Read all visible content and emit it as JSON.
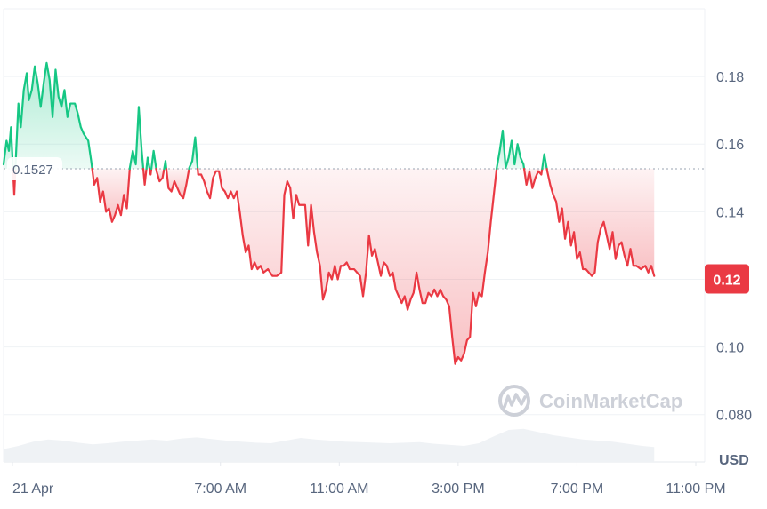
{
  "chart_data": {
    "type": "area",
    "title": "",
    "unit": "USD",
    "reference_value": 0.1527,
    "reference_label": "0.1527",
    "current_value": 0.12,
    "current_label": "0.12",
    "ylim": [
      0.066,
      0.2
    ],
    "y_ticks": [
      {
        "value": 0.18,
        "label": "0.18"
      },
      {
        "value": 0.16,
        "label": "0.16"
      },
      {
        "value": 0.14,
        "label": "0.14"
      },
      {
        "value": 0.12,
        "label": "0.12"
      },
      {
        "value": 0.1,
        "label": "0.10"
      },
      {
        "value": 0.08,
        "label": "0.080"
      }
    ],
    "x_ticks": [
      {
        "hour": 0,
        "label": "21 Apr"
      },
      {
        "hour": 7,
        "label": "7:00 AM"
      },
      {
        "hour": 11,
        "label": "11:00 AM"
      },
      {
        "hour": 15,
        "label": "3:00 PM"
      },
      {
        "hour": 19,
        "label": "7:00 PM"
      },
      {
        "hour": 23,
        "label": "11:00 PM"
      }
    ],
    "x_range_hours": [
      -0.3,
      23.3
    ],
    "grid": true,
    "colors": {
      "up": "#16c784",
      "down": "#ea3943",
      "grid": "#eff2f5",
      "ref_line": "#9aa3b1",
      "volume": "#eff2f5",
      "badge": "#ea3943"
    },
    "points": [
      [
        -0.3,
        0.154
      ],
      [
        -0.2,
        0.161
      ],
      [
        -0.12,
        0.158
      ],
      [
        -0.05,
        0.165
      ],
      [
        0.02,
        0.152
      ],
      [
        0.06,
        0.145
      ],
      [
        0.12,
        0.157
      ],
      [
        0.2,
        0.172
      ],
      [
        0.28,
        0.165
      ],
      [
        0.38,
        0.176
      ],
      [
        0.48,
        0.181
      ],
      [
        0.55,
        0.173
      ],
      [
        0.65,
        0.176
      ],
      [
        0.75,
        0.183
      ],
      [
        0.85,
        0.178
      ],
      [
        0.95,
        0.171
      ],
      [
        1.05,
        0.178
      ],
      [
        1.15,
        0.184
      ],
      [
        1.25,
        0.179
      ],
      [
        1.35,
        0.168
      ],
      [
        1.45,
        0.182
      ],
      [
        1.55,
        0.174
      ],
      [
        1.65,
        0.171
      ],
      [
        1.75,
        0.176
      ],
      [
        1.85,
        0.168
      ],
      [
        1.95,
        0.172
      ],
      [
        2.1,
        0.172
      ],
      [
        2.2,
        0.169
      ],
      [
        2.3,
        0.165
      ],
      [
        2.4,
        0.163
      ],
      [
        2.55,
        0.161
      ],
      [
        2.65,
        0.155
      ],
      [
        2.75,
        0.148
      ],
      [
        2.85,
        0.15
      ],
      [
        2.95,
        0.143
      ],
      [
        3.05,
        0.146
      ],
      [
        3.15,
        0.14
      ],
      [
        3.25,
        0.141
      ],
      [
        3.35,
        0.137
      ],
      [
        3.45,
        0.139
      ],
      [
        3.55,
        0.142
      ],
      [
        3.65,
        0.139
      ],
      [
        3.75,
        0.145
      ],
      [
        3.85,
        0.141
      ],
      [
        3.95,
        0.153
      ],
      [
        4.05,
        0.158
      ],
      [
        4.15,
        0.154
      ],
      [
        4.25,
        0.171
      ],
      [
        4.35,
        0.158
      ],
      [
        4.45,
        0.148
      ],
      [
        4.55,
        0.156
      ],
      [
        4.65,
        0.151
      ],
      [
        4.75,
        0.158
      ],
      [
        4.85,
        0.152
      ],
      [
        4.95,
        0.149
      ],
      [
        5.05,
        0.15
      ],
      [
        5.15,
        0.155
      ],
      [
        5.25,
        0.147
      ],
      [
        5.35,
        0.146
      ],
      [
        5.45,
        0.149
      ],
      [
        5.55,
        0.147
      ],
      [
        5.65,
        0.145
      ],
      [
        5.75,
        0.144
      ],
      [
        5.85,
        0.148
      ],
      [
        5.95,
        0.153
      ],
      [
        6.05,
        0.155
      ],
      [
        6.15,
        0.162
      ],
      [
        6.25,
        0.151
      ],
      [
        6.35,
        0.151
      ],
      [
        6.45,
        0.149
      ],
      [
        6.55,
        0.146
      ],
      [
        6.65,
        0.144
      ],
      [
        6.75,
        0.15
      ],
      [
        6.85,
        0.152
      ],
      [
        6.95,
        0.152
      ],
      [
        7.05,
        0.147
      ],
      [
        7.15,
        0.146
      ],
      [
        7.25,
        0.144
      ],
      [
        7.35,
        0.146
      ],
      [
        7.45,
        0.144
      ],
      [
        7.55,
        0.146
      ],
      [
        7.65,
        0.14
      ],
      [
        7.75,
        0.133
      ],
      [
        7.85,
        0.128
      ],
      [
        7.95,
        0.13
      ],
      [
        8.05,
        0.123
      ],
      [
        8.15,
        0.125
      ],
      [
        8.25,
        0.123
      ],
      [
        8.35,
        0.124
      ],
      [
        8.45,
        0.122
      ],
      [
        8.6,
        0.123
      ],
      [
        8.75,
        0.121
      ],
      [
        8.9,
        0.121
      ],
      [
        9.05,
        0.122
      ],
      [
        9.15,
        0.145
      ],
      [
        9.25,
        0.149
      ],
      [
        9.35,
        0.147
      ],
      [
        9.45,
        0.138
      ],
      [
        9.55,
        0.145
      ],
      [
        9.65,
        0.142
      ],
      [
        9.75,
        0.142
      ],
      [
        9.85,
        0.142
      ],
      [
        9.95,
        0.13
      ],
      [
        10.05,
        0.142
      ],
      [
        10.15,
        0.134
      ],
      [
        10.25,
        0.128
      ],
      [
        10.35,
        0.124
      ],
      [
        10.45,
        0.114
      ],
      [
        10.55,
        0.117
      ],
      [
        10.65,
        0.122
      ],
      [
        10.75,
        0.12
      ],
      [
        10.85,
        0.124
      ],
      [
        10.95,
        0.12
      ],
      [
        11.05,
        0.124
      ],
      [
        11.15,
        0.124
      ],
      [
        11.25,
        0.125
      ],
      [
        11.35,
        0.123
      ],
      [
        11.5,
        0.123
      ],
      [
        11.6,
        0.122
      ],
      [
        11.7,
        0.121
      ],
      [
        11.8,
        0.115
      ],
      [
        11.9,
        0.122
      ],
      [
        12.0,
        0.133
      ],
      [
        12.1,
        0.127
      ],
      [
        12.2,
        0.129
      ],
      [
        12.3,
        0.125
      ],
      [
        12.4,
        0.121
      ],
      [
        12.5,
        0.125
      ],
      [
        12.6,
        0.124
      ],
      [
        12.7,
        0.121
      ],
      [
        12.8,
        0.122
      ],
      [
        12.9,
        0.117
      ],
      [
        13.0,
        0.115
      ],
      [
        13.1,
        0.113
      ],
      [
        13.2,
        0.115
      ],
      [
        13.3,
        0.111
      ],
      [
        13.4,
        0.114
      ],
      [
        13.5,
        0.116
      ],
      [
        13.6,
        0.122
      ],
      [
        13.7,
        0.117
      ],
      [
        13.8,
        0.113
      ],
      [
        13.9,
        0.113
      ],
      [
        14.0,
        0.116
      ],
      [
        14.1,
        0.115
      ],
      [
        14.2,
        0.117
      ],
      [
        14.3,
        0.115
      ],
      [
        14.4,
        0.117
      ],
      [
        14.5,
        0.115
      ],
      [
        14.6,
        0.114
      ],
      [
        14.7,
        0.112
      ],
      [
        14.8,
        0.103
      ],
      [
        14.9,
        0.095
      ],
      [
        15.0,
        0.097
      ],
      [
        15.1,
        0.096
      ],
      [
        15.2,
        0.098
      ],
      [
        15.3,
        0.102
      ],
      [
        15.4,
        0.103
      ],
      [
        15.5,
        0.116
      ],
      [
        15.6,
        0.112
      ],
      [
        15.7,
        0.116
      ],
      [
        15.8,
        0.115
      ],
      [
        15.9,
        0.122
      ],
      [
        16.0,
        0.128
      ],
      [
        16.1,
        0.137
      ],
      [
        16.2,
        0.145
      ],
      [
        16.3,
        0.153
      ],
      [
        16.4,
        0.158
      ],
      [
        16.5,
        0.164
      ],
      [
        16.6,
        0.153
      ],
      [
        16.7,
        0.156
      ],
      [
        16.8,
        0.161
      ],
      [
        16.9,
        0.154
      ],
      [
        17.0,
        0.16
      ],
      [
        17.1,
        0.156
      ],
      [
        17.2,
        0.154
      ],
      [
        17.3,
        0.148
      ],
      [
        17.4,
        0.152
      ],
      [
        17.5,
        0.147
      ],
      [
        17.6,
        0.15
      ],
      [
        17.7,
        0.152
      ],
      [
        17.8,
        0.151
      ],
      [
        17.9,
        0.157
      ],
      [
        18.0,
        0.152
      ],
      [
        18.1,
        0.148
      ],
      [
        18.2,
        0.145
      ],
      [
        18.3,
        0.143
      ],
      [
        18.4,
        0.137
      ],
      [
        18.5,
        0.141
      ],
      [
        18.6,
        0.132
      ],
      [
        18.7,
        0.137
      ],
      [
        18.8,
        0.13
      ],
      [
        18.9,
        0.134
      ],
      [
        19.0,
        0.126
      ],
      [
        19.1,
        0.128
      ],
      [
        19.2,
        0.123
      ],
      [
        19.3,
        0.123
      ],
      [
        19.4,
        0.122
      ],
      [
        19.5,
        0.121
      ],
      [
        19.6,
        0.122
      ],
      [
        19.7,
        0.131
      ],
      [
        19.8,
        0.135
      ],
      [
        19.9,
        0.137
      ],
      [
        20.0,
        0.133
      ],
      [
        20.1,
        0.129
      ],
      [
        20.2,
        0.134
      ],
      [
        20.3,
        0.126
      ],
      [
        20.4,
        0.13
      ],
      [
        20.5,
        0.131
      ],
      [
        20.6,
        0.127
      ],
      [
        20.7,
        0.124
      ],
      [
        20.8,
        0.129
      ],
      [
        20.9,
        0.124
      ],
      [
        21.0,
        0.124
      ],
      [
        21.15,
        0.123
      ],
      [
        21.3,
        0.124
      ],
      [
        21.4,
        0.122
      ],
      [
        21.5,
        0.124
      ],
      [
        21.6,
        0.121
      ]
    ],
    "volume": [
      [
        -0.3,
        0.24
      ],
      [
        0.2,
        0.3
      ],
      [
        0.7,
        0.38
      ],
      [
        1.2,
        0.42
      ],
      [
        1.7,
        0.4
      ],
      [
        2.2,
        0.36
      ],
      [
        2.7,
        0.33
      ],
      [
        3.2,
        0.35
      ],
      [
        3.7,
        0.38
      ],
      [
        4.2,
        0.4
      ],
      [
        4.7,
        0.42
      ],
      [
        5.2,
        0.4
      ],
      [
        5.7,
        0.44
      ],
      [
        6.2,
        0.46
      ],
      [
        6.7,
        0.43
      ],
      [
        7.2,
        0.4
      ],
      [
        7.7,
        0.38
      ],
      [
        8.2,
        0.36
      ],
      [
        8.7,
        0.35
      ],
      [
        9.2,
        0.4
      ],
      [
        9.7,
        0.45
      ],
      [
        10.2,
        0.42
      ],
      [
        10.7,
        0.4
      ],
      [
        11.2,
        0.38
      ],
      [
        11.7,
        0.37
      ],
      [
        12.2,
        0.36
      ],
      [
        12.7,
        0.35
      ],
      [
        13.2,
        0.36
      ],
      [
        13.7,
        0.37
      ],
      [
        14.2,
        0.34
      ],
      [
        14.7,
        0.32
      ],
      [
        15.2,
        0.3
      ],
      [
        15.7,
        0.35
      ],
      [
        16.2,
        0.48
      ],
      [
        16.7,
        0.6
      ],
      [
        17.2,
        0.62
      ],
      [
        17.7,
        0.56
      ],
      [
        18.2,
        0.5
      ],
      [
        18.7,
        0.46
      ],
      [
        19.2,
        0.42
      ],
      [
        19.7,
        0.4
      ],
      [
        20.2,
        0.38
      ],
      [
        20.7,
        0.34
      ],
      [
        21.2,
        0.3
      ],
      [
        21.6,
        0.28
      ]
    ]
  },
  "watermark": {
    "text": "CoinMarketCap",
    "icon": "coinmarketcap-logo-icon"
  }
}
